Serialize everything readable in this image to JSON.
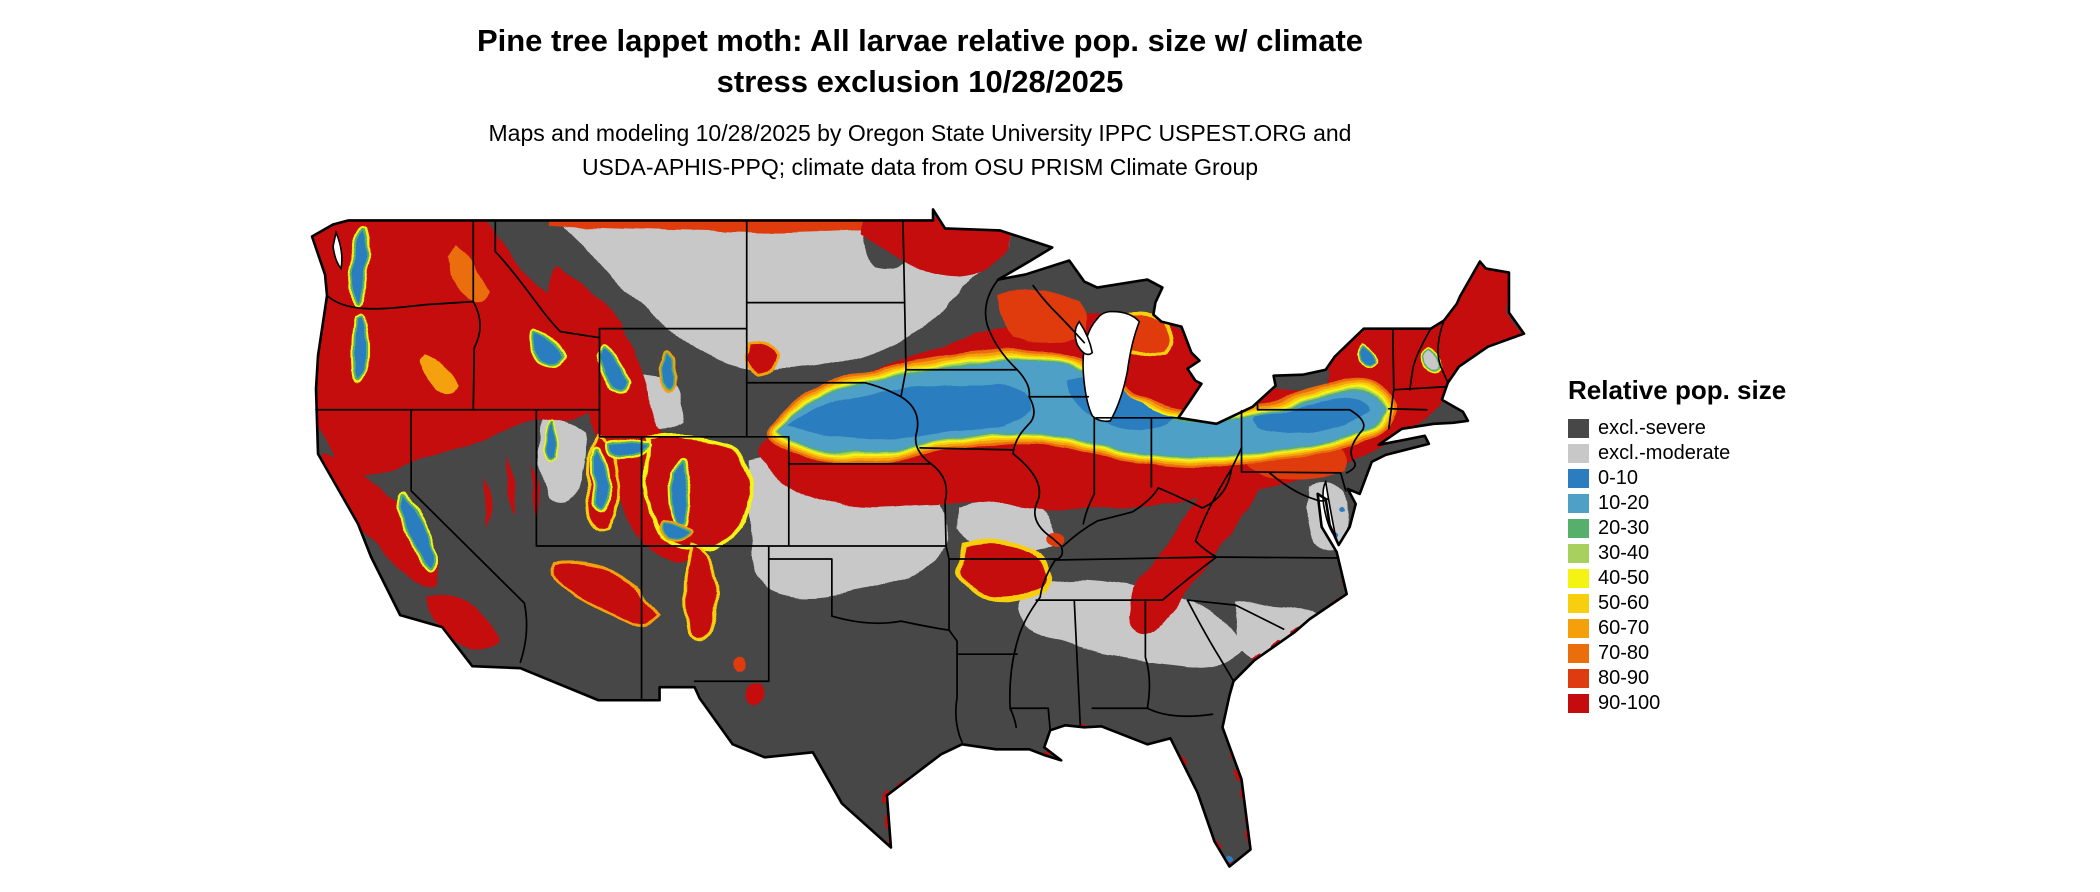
{
  "title": {
    "line1": "Pine tree lappet moth: All larvae relative pop. size w/ climate",
    "line2": "stress exclusion 10/28/2025"
  },
  "subtitle": {
    "line1": "Maps and modeling 10/28/2025 by Oregon State University IPPC USPEST.ORG and",
    "line2": "USDA-APHIS-PPQ; climate data from OSU PRISM Climate Group"
  },
  "legend": {
    "title": "Relative pop. size",
    "entries": [
      {
        "key": "sev",
        "label": "excl.-severe",
        "color": "#474747"
      },
      {
        "key": "mod",
        "label": "excl.-moderate",
        "color": "#c8c8c8"
      },
      {
        "key": "b0",
        "label": "0-10",
        "color": "#2b7dbf"
      },
      {
        "key": "b10",
        "label": "10-20",
        "color": "#4fa0c6"
      },
      {
        "key": "g20",
        "label": "20-30",
        "color": "#56b06c"
      },
      {
        "key": "g30",
        "label": "30-40",
        "color": "#a8d05f"
      },
      {
        "key": "y40",
        "label": "40-50",
        "color": "#f5f312"
      },
      {
        "key": "y50",
        "label": "50-60",
        "color": "#f7cf0e"
      },
      {
        "key": "o60",
        "label": "60-70",
        "color": "#f5a00a"
      },
      {
        "key": "o70",
        "label": "70-80",
        "color": "#ea6e0c"
      },
      {
        "key": "r80",
        "label": "80-90",
        "color": "#df3b10"
      },
      {
        "key": "r90",
        "label": "90-100",
        "color": "#c50b0d"
      }
    ]
  },
  "map": {
    "area": "contiguous United States"
  }
}
